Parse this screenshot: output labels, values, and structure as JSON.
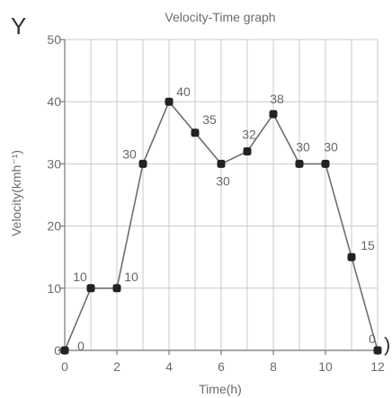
{
  "chart_data": {
    "type": "line",
    "title": "Velocity-Time graph",
    "xlabel": "Time(h)",
    "ylabel": "Velocity(kmh⁻¹)",
    "y_axis_letter": "Y",
    "x_axis_letter": ")",
    "x": [
      0,
      1,
      2,
      3,
      4,
      5,
      6,
      7,
      8,
      9,
      10,
      11,
      12
    ],
    "values": [
      0,
      10,
      10,
      30,
      40,
      35,
      30,
      32,
      38,
      30,
      30,
      15,
      0
    ],
    "data_labels": [
      "0",
      "10",
      "10",
      "30",
      "40",
      "35",
      "30",
      "32",
      "38",
      "30",
      "30",
      "15",
      "0"
    ],
    "xlim": [
      0,
      12
    ],
    "ylim": [
      0,
      50
    ],
    "x_ticks": [
      "0",
      "2",
      "4",
      "6",
      "8",
      "10",
      "12"
    ],
    "y_ticks": [
      "0",
      "10",
      "20",
      "30",
      "40",
      "50"
    ],
    "grid": true,
    "colors": {
      "line": "#6e6e6e",
      "marker": "#222222",
      "grid": "#c9c9c9",
      "text": "#6b6b6b"
    }
  }
}
